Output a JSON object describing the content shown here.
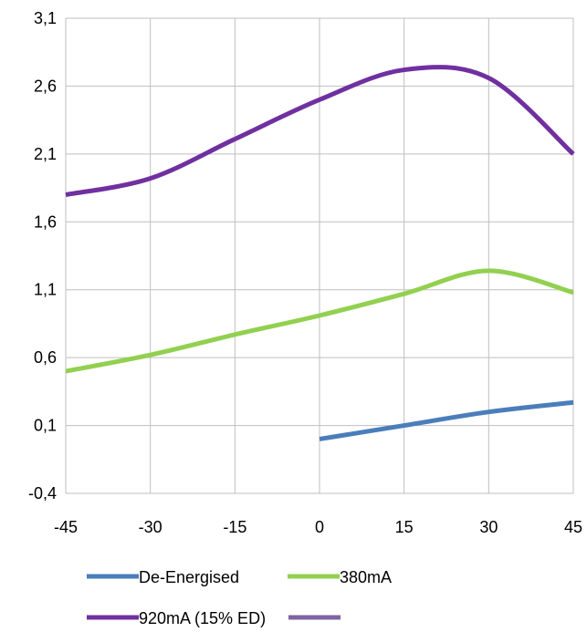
{
  "chart_data": {
    "type": "line",
    "title": "",
    "xlabel": "",
    "ylabel": "",
    "xlim": [
      -45,
      45
    ],
    "ylim": [
      -0.4,
      3.1
    ],
    "x_ticks": [
      -45,
      -30,
      -15,
      0,
      15,
      30,
      45
    ],
    "x_tick_labels": [
      "-45",
      "-30",
      "-15",
      "0",
      "15",
      "30",
      "45"
    ],
    "y_ticks": [
      -0.4,
      0.1,
      0.6,
      1.1,
      1.6,
      2.1,
      2.6,
      3.1
    ],
    "y_tick_labels": [
      "-0,4",
      "0,1",
      "0,6",
      "1,1",
      "1,6",
      "2,1",
      "2,6",
      "3,1"
    ],
    "grid": true,
    "legend_position": "bottom",
    "series": [
      {
        "name": "De-Energised",
        "color": "#4a7ebb",
        "x": [
          0,
          15,
          30,
          45
        ],
        "y": [
          0.0,
          0.1,
          0.2,
          0.27
        ]
      },
      {
        "name": "380mA",
        "color": "#92d050",
        "x": [
          -45,
          -30,
          -15,
          0,
          15,
          30,
          45
        ],
        "y": [
          0.5,
          0.62,
          0.77,
          0.91,
          1.07,
          1.24,
          1.08
        ]
      },
      {
        "name": "920mA (15% ED)",
        "color": "#7030a0",
        "x": [
          -45,
          -30,
          -15,
          0,
          15,
          30,
          45
        ],
        "y": [
          1.8,
          1.92,
          2.21,
          2.5,
          2.72,
          2.66,
          2.1
        ]
      },
      {
        "name": "",
        "color": "#8064a2",
        "x": [],
        "y": []
      }
    ]
  }
}
